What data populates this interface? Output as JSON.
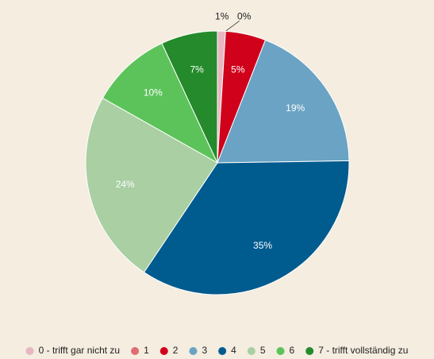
{
  "chart_data": {
    "type": "pie",
    "categories": [
      "0 - trifft gar nicht zu",
      "1",
      "2",
      "3",
      "4",
      "5",
      "6",
      "7 - trifft vollständig zu"
    ],
    "values": [
      1,
      0,
      5,
      19,
      35,
      24,
      10,
      7
    ],
    "value_labels": [
      "1%",
      "0%",
      "5%",
      "19%",
      "35%",
      "24%",
      "10%",
      "7%"
    ],
    "colors": [
      "#e8b7bf",
      "#e06b72",
      "#d0021b",
      "#6aa3c4",
      "#005b8f",
      "#a9cfa2",
      "#5cc35b",
      "#248a2b"
    ],
    "legend": "bottom"
  }
}
